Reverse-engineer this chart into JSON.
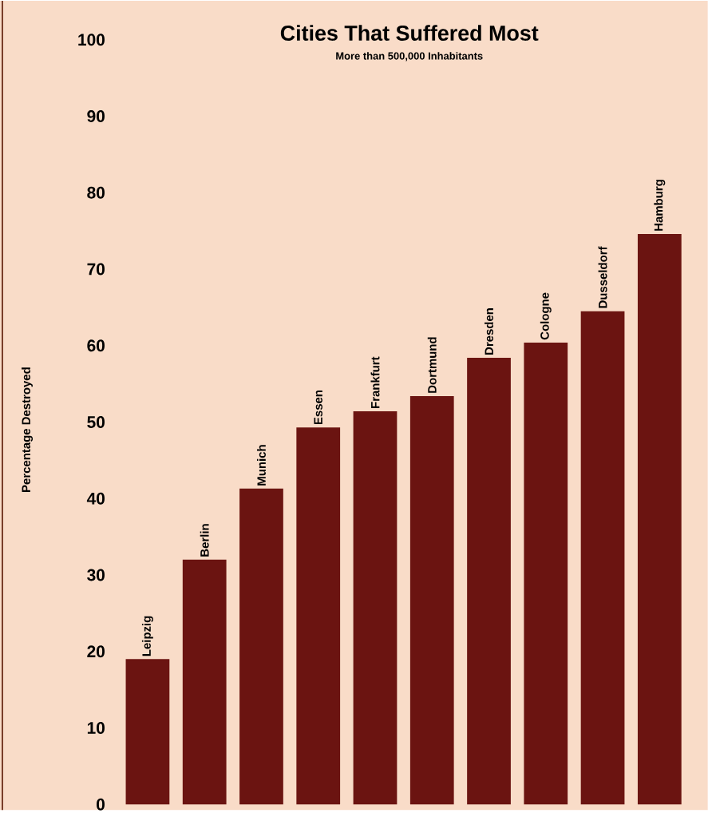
{
  "chart_data": {
    "type": "bar",
    "title": "Cities That Suffered Most",
    "subtitle": "More than 500,000  Inhabitants",
    "ylabel": "Percentage Destroyed",
    "categories": [
      "Leipzig",
      "Berlin",
      "Munich",
      "Essen",
      "Frankfurt",
      "Dortmund",
      "Dresden",
      "Cologne",
      "Dusseldorf",
      "Hamburg"
    ],
    "values": [
      19,
      32,
      41.3,
      49.3,
      51.4,
      53.4,
      58.4,
      60.4,
      64.5,
      74.6
    ],
    "color": "#6b1411",
    "ylim": [
      0,
      100
    ],
    "yticks": [
      0,
      10,
      20,
      30,
      40,
      50,
      60,
      70,
      80,
      90,
      100
    ]
  }
}
